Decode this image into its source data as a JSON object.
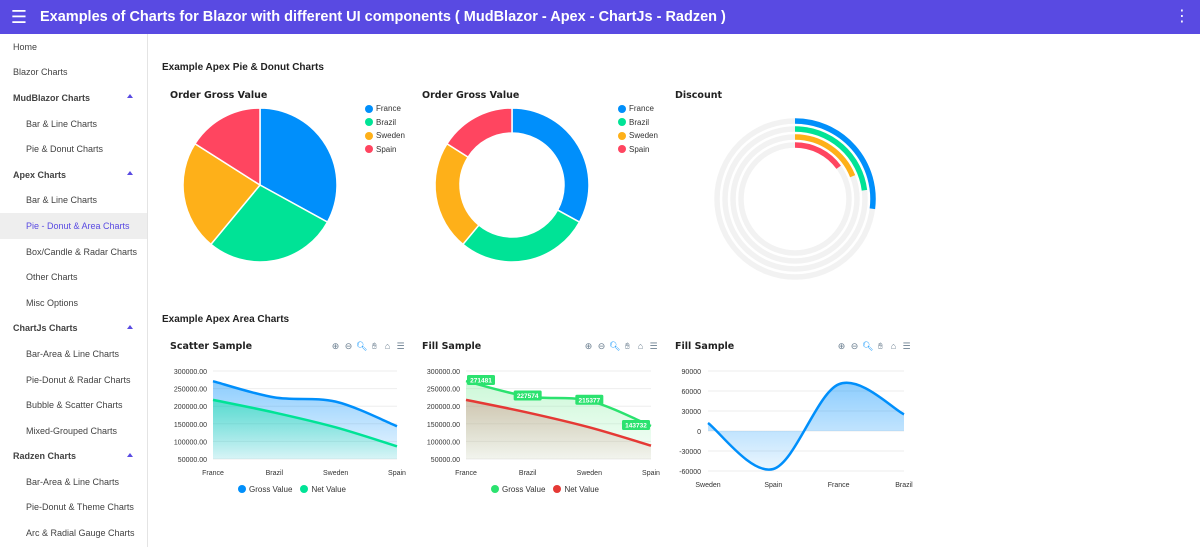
{
  "appbar": {
    "title": "Examples of Charts for Blazor with different UI components ( MudBlazor - Apex - ChartJs - Radzen )",
    "menu_icon": "☰",
    "more_icon": "⋮"
  },
  "nav": [
    {
      "label": "Home",
      "kind": "link"
    },
    {
      "label": "Blazor Charts",
      "kind": "link"
    },
    {
      "label": "MudBlazor Charts",
      "kind": "group"
    },
    {
      "label": "Bar & Line Charts",
      "kind": "sub"
    },
    {
      "label": "Pie & Donut Charts",
      "kind": "sub"
    },
    {
      "label": "Apex Charts",
      "kind": "group"
    },
    {
      "label": "Bar & Line Charts",
      "kind": "sub"
    },
    {
      "label": "Pie - Donut & Area Charts",
      "kind": "sub",
      "active": true
    },
    {
      "label": "Box/Candle & Radar Charts",
      "kind": "sub"
    },
    {
      "label": "Other Charts",
      "kind": "sub"
    },
    {
      "label": "Misc Options",
      "kind": "sub"
    },
    {
      "label": "ChartJs Charts",
      "kind": "group"
    },
    {
      "label": "Bar-Area & Line Charts",
      "kind": "sub"
    },
    {
      "label": "Pie-Donut & Radar Charts",
      "kind": "sub"
    },
    {
      "label": "Bubble & Scatter Charts",
      "kind": "sub"
    },
    {
      "label": "Mixed-Grouped Charts",
      "kind": "sub"
    },
    {
      "label": "Radzen Charts",
      "kind": "group"
    },
    {
      "label": "Bar-Area & Line Charts",
      "kind": "sub"
    },
    {
      "label": "Pie-Donut & Theme Charts",
      "kind": "sub"
    },
    {
      "label": "Arc & Radial Gauge Charts",
      "kind": "sub"
    }
  ],
  "sections": {
    "pie_donut": "Example Apex Pie & Donut Charts",
    "area": "Example Apex Area Charts"
  },
  "toolbar_icons": [
    "zoom-in-icon",
    "zoom-out-icon",
    "zoom-select-icon",
    "pan-hand-icon",
    "home-reset-icon",
    "menu-icon"
  ],
  "colors": {
    "blue": "#008ffb",
    "green": "#00e396",
    "orange": "#feb019",
    "red": "#ff4560",
    "brand": "#594ae2"
  },
  "chart_data": [
    {
      "id": "pie",
      "type": "pie",
      "title": "Order Gross Value",
      "categories": [
        "France",
        "Brazil",
        "Sweden",
        "Spain"
      ],
      "values": [
        33,
        28,
        23,
        16
      ],
      "colors": [
        "#008ffb",
        "#00e396",
        "#feb019",
        "#ff4560"
      ]
    },
    {
      "id": "donut",
      "type": "pie",
      "subtype": "donut",
      "title": "Order Gross Value",
      "categories": [
        "France",
        "Brazil",
        "Sweden",
        "Spain"
      ],
      "values": [
        33,
        28,
        23,
        16
      ],
      "colors": [
        "#008ffb",
        "#00e396",
        "#feb019",
        "#ff4560"
      ]
    },
    {
      "id": "radial",
      "type": "radialBar",
      "title": "Discount",
      "categories": [
        "France",
        "Brazil",
        "Sweden",
        "Spain"
      ],
      "values": [
        27,
        23,
        19,
        15
      ],
      "max": 100,
      "colors": [
        "#008ffb",
        "#00e396",
        "#feb019",
        "#ff4560"
      ]
    },
    {
      "id": "scatter",
      "type": "area",
      "title": "Scatter Sample",
      "categories": [
        "France",
        "Brazil",
        "Sweden",
        "Spain"
      ],
      "series": [
        {
          "name": "Gross Value",
          "values": [
            271000,
            225000,
            213000,
            143000
          ],
          "color": "#008ffb"
        },
        {
          "name": "Net Value",
          "values": [
            218000,
            182000,
            140000,
            86000
          ],
          "color": "#00e396"
        }
      ],
      "yticks": [
        "300000.00",
        "250000.00",
        "200000.00",
        "150000.00",
        "100000.00",
        "50000.00"
      ],
      "ylim": [
        50000,
        300000
      ]
    },
    {
      "id": "fill",
      "type": "area",
      "title": "Fill Sample",
      "categories": [
        "France",
        "Brazil",
        "Sweden",
        "Spain"
      ],
      "series": [
        {
          "name": "Gross Value",
          "values": [
            271481,
            227574,
            215377,
            143732
          ],
          "color": "#2be26f",
          "labels": [
            "271481",
            "227574",
            "215377",
            "143732"
          ]
        },
        {
          "name": "Net Value",
          "values": [
            218000,
            182000,
            140000,
            88000
          ],
          "color": "#e53935"
        }
      ],
      "yticks": [
        "300000.00",
        "250000.00",
        "200000.00",
        "150000.00",
        "100000.00",
        "50000.00"
      ],
      "ylim": [
        50000,
        300000
      ]
    },
    {
      "id": "fill2",
      "type": "area",
      "title": "Fill Sample",
      "categories": [
        "Sweden",
        "Spain",
        "France",
        "Brazil"
      ],
      "series": [
        {
          "name": "",
          "values": [
            12000,
            -57000,
            70000,
            25000
          ],
          "color": "#008ffb"
        }
      ],
      "yticks": [
        "90000",
        "60000",
        "30000",
        "0",
        "-30000",
        "-60000"
      ],
      "ylim": [
        -60000,
        90000
      ]
    }
  ]
}
